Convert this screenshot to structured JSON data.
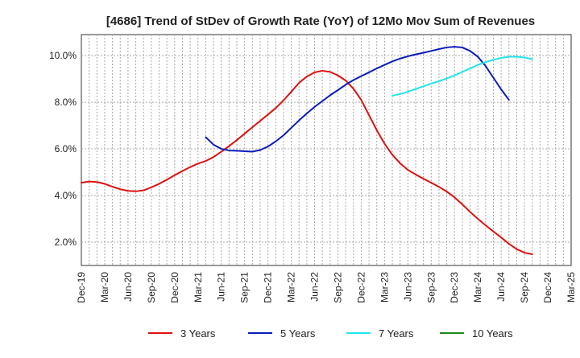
{
  "chart_data": {
    "type": "line",
    "title": "[4686]  Trend of StDev of Growth Rate (YoY) of 12Mo Mov Sum of Revenues",
    "xlabel": "",
    "ylabel": "",
    "ylim": [
      1.0,
      10.9
    ],
    "yticks": [
      2.0,
      4.0,
      6.0,
      8.0,
      10.0
    ],
    "ytick_labels": [
      "2.0%",
      "4.0%",
      "6.0%",
      "8.0%",
      "10.0%"
    ],
    "x_start": "Dec-19",
    "x_months": 63,
    "xtick_labels": [
      "Dec-19",
      "Mar-20",
      "Jun-20",
      "Sep-20",
      "Dec-20",
      "Mar-21",
      "Jun-21",
      "Sep-21",
      "Dec-21",
      "Mar-22",
      "Jun-22",
      "Sep-22",
      "Dec-22",
      "Mar-23",
      "Jun-23",
      "Sep-23",
      "Dec-23",
      "Mar-24",
      "Jun-24",
      "Sep-24",
      "Dec-24",
      "Mar-25"
    ],
    "legend_position": "bottom",
    "grid": true,
    "series": [
      {
        "name": "3 Years",
        "color": "#dd1111",
        "start_index": 0,
        "values": [
          4.55,
          4.6,
          4.58,
          4.5,
          4.38,
          4.27,
          4.2,
          4.18,
          4.22,
          4.35,
          4.5,
          4.68,
          4.87,
          5.05,
          5.22,
          5.37,
          5.48,
          5.65,
          5.88,
          6.12,
          6.38,
          6.65,
          6.93,
          7.2,
          7.47,
          7.75,
          8.08,
          8.45,
          8.83,
          9.1,
          9.28,
          9.35,
          9.3,
          9.15,
          8.93,
          8.58,
          8.1,
          7.45,
          6.8,
          6.22,
          5.75,
          5.38,
          5.1,
          4.9,
          4.72,
          4.55,
          4.37,
          4.17,
          3.92,
          3.62,
          3.3,
          3.0,
          2.72,
          2.46,
          2.2,
          1.93,
          1.7,
          1.55,
          1.48
        ]
      },
      {
        "name": "5 Years",
        "color": "#0b1cb8",
        "start_index": 16,
        "values": [
          6.5,
          6.18,
          6.0,
          5.93,
          5.92,
          5.9,
          5.88,
          5.95,
          6.1,
          6.32,
          6.58,
          6.9,
          7.22,
          7.52,
          7.8,
          8.05,
          8.3,
          8.52,
          8.75,
          8.95,
          9.12,
          9.28,
          9.45,
          9.6,
          9.75,
          9.87,
          9.97,
          10.05,
          10.12,
          10.2,
          10.28,
          10.35,
          10.38,
          10.35,
          10.2,
          9.95,
          9.55,
          9.05,
          8.55,
          8.1
        ]
      },
      {
        "name": "7 Years",
        "color": "#22e4ee",
        "start_index": 40,
        "values": [
          8.28,
          8.35,
          8.45,
          8.57,
          8.68,
          8.8,
          8.9,
          9.02,
          9.15,
          9.3,
          9.45,
          9.6,
          9.72,
          9.82,
          9.9,
          9.95,
          9.95,
          9.92,
          9.85
        ]
      },
      {
        "name": "10 Years",
        "color": "#1a8a1a",
        "start_index": 0,
        "values": []
      }
    ]
  }
}
